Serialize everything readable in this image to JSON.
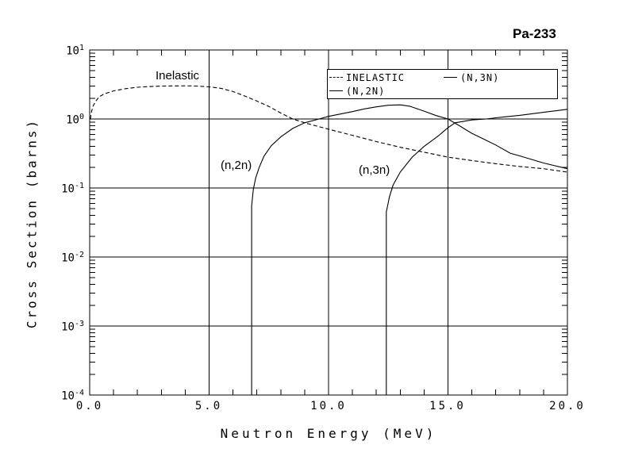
{
  "title": "Pa-233",
  "axes": {
    "x_label": "Neutron Energy (MeV)",
    "y_label": "Cross Section (barns)",
    "x_ticks": [
      "0.0",
      "5.0",
      "10.0",
      "15.0",
      "20.0"
    ],
    "y_ticks": [
      {
        "base": "10",
        "exp": "1"
      },
      {
        "base": "10",
        "exp": "0"
      },
      {
        "base": "10",
        "exp": "-1"
      },
      {
        "base": "10",
        "exp": "-2"
      },
      {
        "base": "10",
        "exp": "-3"
      },
      {
        "base": "10",
        "exp": "-4"
      }
    ]
  },
  "legend": {
    "items": [
      {
        "label": "INELASTIC",
        "style": "dashed"
      },
      {
        "label": "(N,3N)",
        "style": "solid"
      },
      {
        "label": "(N,2N)",
        "style": "solid"
      }
    ]
  },
  "curve_labels": {
    "inelastic": "Inelastic",
    "n2n": "(n,2n)",
    "n3n": "(n,3n)"
  },
  "colors": {
    "line": "#000000",
    "background": "#ffffff"
  },
  "chart_data": {
    "type": "line",
    "title": "Pa-233",
    "xlabel": "Neutron Energy (MeV)",
    "ylabel": "Cross Section (barns)",
    "x_axis": {
      "min": 0,
      "max": 20,
      "major_ticks": [
        0,
        5,
        10,
        15,
        20
      ],
      "minor_tick_step": 1,
      "gridlines_at": [
        5,
        10,
        15
      ]
    },
    "y_axis": {
      "scale": "log",
      "min": 0.0001,
      "max": 10,
      "tick_decades": [
        10,
        1,
        0.1,
        0.01,
        0.001,
        0.0001
      ],
      "gridlines_at": [
        1,
        0.1,
        0.01,
        0.001
      ]
    },
    "series": [
      {
        "name": "INELASTIC",
        "style": "dashed",
        "points": [
          [
            0.03,
            1.0
          ],
          [
            0.08,
            1.3
          ],
          [
            0.15,
            1.55
          ],
          [
            0.25,
            1.8
          ],
          [
            0.4,
            2.1
          ],
          [
            0.6,
            2.3
          ],
          [
            1.0,
            2.55
          ],
          [
            1.5,
            2.75
          ],
          [
            2.0,
            2.88
          ],
          [
            2.5,
            2.95
          ],
          [
            3.0,
            3.0
          ],
          [
            4.0,
            3.02
          ],
          [
            4.5,
            3.0
          ],
          [
            5.0,
            2.92
          ],
          [
            5.5,
            2.78
          ],
          [
            6.0,
            2.5
          ],
          [
            6.5,
            2.15
          ],
          [
            7.0,
            1.82
          ],
          [
            7.5,
            1.52
          ],
          [
            8.0,
            1.22
          ],
          [
            8.5,
            1.0
          ],
          [
            9.0,
            0.88
          ],
          [
            9.5,
            0.79
          ],
          [
            10.0,
            0.71
          ],
          [
            11.0,
            0.58
          ],
          [
            12.0,
            0.47
          ],
          [
            13.0,
            0.39
          ],
          [
            14.0,
            0.33
          ],
          [
            15.0,
            0.28
          ],
          [
            16.0,
            0.25
          ],
          [
            17.0,
            0.225
          ],
          [
            18.0,
            0.205
          ],
          [
            19.0,
            0.19
          ],
          [
            20.0,
            0.17
          ]
        ]
      },
      {
        "name": "(N,2N)",
        "style": "solid",
        "points": [
          [
            6.78,
            0.0001
          ],
          [
            6.78,
            0.055
          ],
          [
            6.85,
            0.095
          ],
          [
            6.95,
            0.14
          ],
          [
            7.1,
            0.2
          ],
          [
            7.3,
            0.29
          ],
          [
            7.6,
            0.41
          ],
          [
            8.0,
            0.55
          ],
          [
            8.5,
            0.73
          ],
          [
            9.0,
            0.88
          ],
          [
            9.6,
            1.0
          ],
          [
            10.0,
            1.09
          ],
          [
            10.5,
            1.18
          ],
          [
            11.0,
            1.28
          ],
          [
            11.5,
            1.4
          ],
          [
            12.0,
            1.5
          ],
          [
            12.5,
            1.58
          ],
          [
            13.0,
            1.6
          ],
          [
            13.4,
            1.53
          ],
          [
            14.0,
            1.3
          ],
          [
            14.5,
            1.12
          ],
          [
            15.0,
            1.0
          ],
          [
            15.5,
            0.79
          ],
          [
            16.0,
            0.62
          ],
          [
            16.5,
            0.51
          ],
          [
            17.0,
            0.42
          ],
          [
            17.6,
            0.32
          ],
          [
            18.1,
            0.285
          ],
          [
            19.0,
            0.23
          ],
          [
            20.0,
            0.19
          ]
        ]
      },
      {
        "name": "(N,3N)",
        "style": "solid",
        "points": [
          [
            12.42,
            0.0001
          ],
          [
            12.42,
            0.045
          ],
          [
            12.55,
            0.075
          ],
          [
            12.7,
            0.11
          ],
          [
            13.0,
            0.17
          ],
          [
            13.5,
            0.28
          ],
          [
            14.0,
            0.4
          ],
          [
            14.6,
            0.57
          ],
          [
            15.0,
            0.75
          ],
          [
            15.3,
            0.88
          ],
          [
            16.0,
            0.97
          ],
          [
            16.6,
            1.0
          ],
          [
            17.0,
            1.04
          ],
          [
            18.0,
            1.13
          ],
          [
            19.0,
            1.25
          ],
          [
            20.0,
            1.38
          ]
        ]
      }
    ]
  }
}
